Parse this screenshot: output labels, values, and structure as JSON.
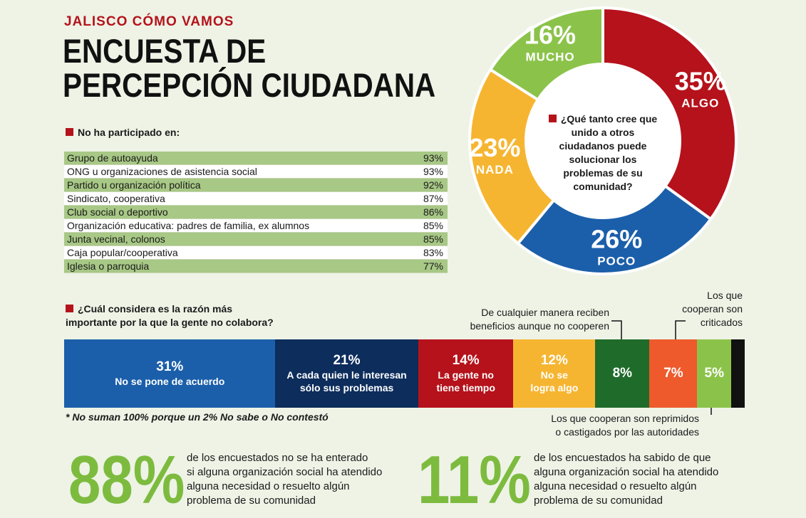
{
  "header": {
    "kicker": "JALISCO CÓMO VAMOS",
    "title_line1": "ENCUESTA DE",
    "title_line2": "PERCEPCIÓN CIUDADANA"
  },
  "participation": {
    "heading": "No ha participado en:",
    "rows": [
      {
        "label": "Grupo de autoayuda",
        "value": "93%"
      },
      {
        "label": "ONG u organizaciones de asistencia social",
        "value": "93%"
      },
      {
        "label": "Partido u organización política",
        "value": "92%"
      },
      {
        "label": "Sindicato, cooperativa",
        "value": "87%"
      },
      {
        "label": "Club social o deportivo",
        "value": "86%"
      },
      {
        "label": "Organización educativa: padres de familia, ex alumnos",
        "value": "85%"
      },
      {
        "label": "Junta vecinal, colonos",
        "value": "85%"
      },
      {
        "label": "Caja popular/cooperativa",
        "value": "83%"
      },
      {
        "label": "Iglesia o parroquia",
        "value": "77%"
      }
    ]
  },
  "pie": {
    "question": "¿Qué tanto cree que unido a otros ciudadanos puede solucionar los problemas de su comunidad?",
    "slices": [
      {
        "label": "ALGO",
        "value": 35,
        "pct": "35%",
        "color": "#b5121b"
      },
      {
        "label": "POCO",
        "value": 26,
        "pct": "26%",
        "color": "#1b5faa"
      },
      {
        "label": "NADA",
        "value": 23,
        "pct": "23%",
        "color": "#f6b531"
      },
      {
        "label": "MUCHO",
        "value": 16,
        "pct": "16%",
        "color": "#8bc34a"
      }
    ]
  },
  "reasons": {
    "heading_line1": "¿Cuál considera es la razón más",
    "heading_line2": "importante por la que la gente no colabora?",
    "segments": [
      {
        "pct": "31%",
        "value": 31,
        "label_line1": "No se pone de acuerdo",
        "label_line2": "",
        "color": "#1b5faa"
      },
      {
        "pct": "21%",
        "value": 21,
        "label_line1": "A cada quien le interesan",
        "label_line2": "sólo sus problemas",
        "color": "#0d2d5c"
      },
      {
        "pct": "14%",
        "value": 14,
        "label_line1": "La gente no",
        "label_line2": "tiene tiempo",
        "color": "#b5121b"
      },
      {
        "pct": "12%",
        "value": 12,
        "label_line1": "No se",
        "label_line2": "logra algo",
        "color": "#f6b531"
      },
      {
        "pct": "8%",
        "value": 8,
        "label_line1": "",
        "label_line2": "",
        "color": "#1f6b2a"
      },
      {
        "pct": "7%",
        "value": 7,
        "label_line1": "",
        "label_line2": "",
        "color": "#ee5a2c"
      },
      {
        "pct": "5%",
        "value": 5,
        "label_line1": "",
        "label_line2": "",
        "color": "#8bc34a"
      },
      {
        "pct": "",
        "value": 2,
        "label_line1": "",
        "label_line2": "",
        "color": "#111111"
      }
    ],
    "note_8_line1": "De cualquier manera reciben",
    "note_8_line2": "beneficios aunque no cooperen",
    "note_7_line1": "Los que",
    "note_7_line2": "cooperan son",
    "note_7_line3": "criticados",
    "note_5_line1": "Los que cooperan son reprimidos",
    "note_5_line2": "o castigados por las autoridades",
    "footnote": "* No suman 100% porque un 2% No sabe o No contestó"
  },
  "stats": {
    "left_big": "88%",
    "left_text": [
      "de los encuestados no se ha enterado",
      "si alguna organización social ha atendido",
      "alguna necesidad o resuelto algún",
      "problema de su comunidad"
    ],
    "right_big": "11%",
    "right_text": [
      "de los encuestados ha sabido de que",
      "alguna organización social ha atendido",
      "alguna necesidad o resuelto algún",
      "problema de su comunidad"
    ]
  },
  "chart_data": [
    {
      "type": "pie",
      "title": "¿Qué tanto cree que unido a otros ciudadanos puede solucionar los problemas de su comunidad?",
      "categories": [
        "ALGO",
        "POCO",
        "NADA",
        "MUCHO"
      ],
      "values": [
        35,
        26,
        23,
        16
      ]
    },
    {
      "type": "bar",
      "title": "¿Cuál considera es la razón más importante por la que la gente no colabora?",
      "categories": [
        "No se pone de acuerdo",
        "A cada quien le interesan sólo sus problemas",
        "La gente no tiene tiempo",
        "No se logra algo",
        "De cualquier manera reciben beneficios aunque no cooperen",
        "Los que cooperan son criticados",
        "Los que cooperan son reprimidos o castigados por las autoridades"
      ],
      "values": [
        31,
        21,
        14,
        12,
        8,
        7,
        5
      ]
    },
    {
      "type": "table",
      "title": "No ha participado en:",
      "categories": [
        "Grupo de autoayuda",
        "ONG u organizaciones de asistencia social",
        "Partido u organización política",
        "Sindicato, cooperativa",
        "Club social o deportivo",
        "Organización educativa: padres de familia, ex alumnos",
        "Junta vecinal, colonos",
        "Caja popular/cooperativa",
        "Iglesia o parroquia"
      ],
      "values": [
        93,
        93,
        92,
        87,
        86,
        85,
        85,
        83,
        77
      ]
    }
  ]
}
